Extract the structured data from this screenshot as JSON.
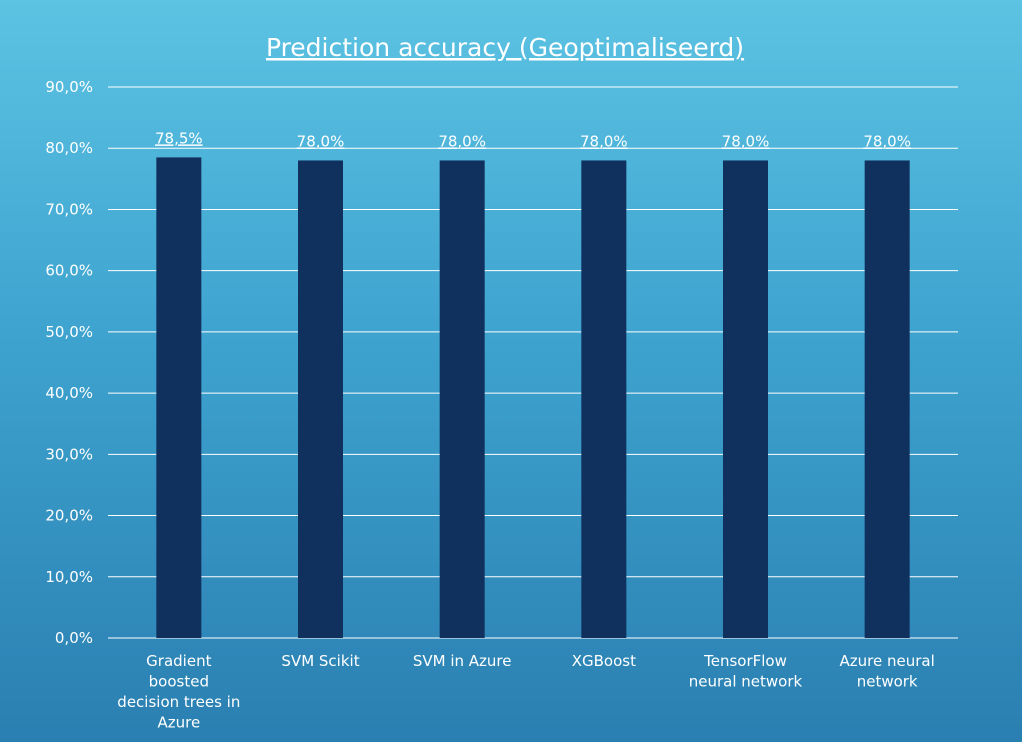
{
  "chart_data": {
    "type": "bar",
    "title": "Prediction accuracy (Geoptimaliseerd)",
    "categories": [
      "Gradient boosted decision trees in Azure",
      "SVM Scikit",
      "SVM in Azure",
      "XGBoost",
      "TensorFlow neural network",
      "Azure neural network"
    ],
    "category_lines": [
      [
        "Gradient",
        "boosted",
        "decision trees in",
        "Azure"
      ],
      [
        "SVM Scikit"
      ],
      [
        "SVM in Azure"
      ],
      [
        "XGBoost"
      ],
      [
        "TensorFlow",
        "neural network"
      ],
      [
        "Azure neural",
        "network"
      ]
    ],
    "values": [
      78.5,
      78.0,
      78.0,
      78.0,
      78.0,
      78.0
    ],
    "data_labels": [
      "78,5%",
      "78,0%",
      "78,0%",
      "78,0%",
      "78,0%",
      "78,0%"
    ],
    "ylim": [
      0,
      90
    ],
    "yticks": [
      0,
      10,
      20,
      30,
      40,
      50,
      60,
      70,
      80,
      90
    ],
    "ytick_labels": [
      "0,0%",
      "10,0%",
      "20,0%",
      "30,0%",
      "40,0%",
      "50,0%",
      "60,0%",
      "70,0%",
      "80,0%",
      "90,0%"
    ],
    "xlabel": "",
    "ylabel": "",
    "grid": true,
    "legend": "none",
    "colors": {
      "bar": "#10305e",
      "grid": "#ffffff",
      "text": "#ffffff"
    }
  }
}
